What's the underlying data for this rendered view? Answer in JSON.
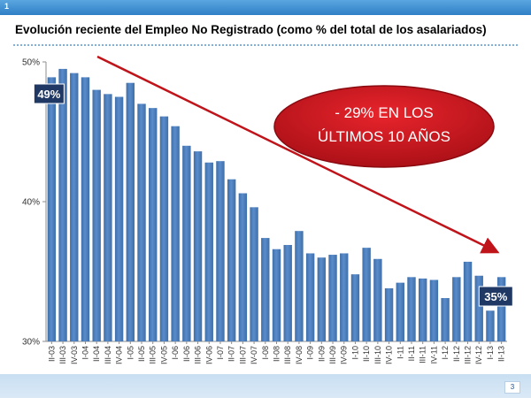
{
  "header": {
    "slide_number": "1"
  },
  "footer": {
    "page_number": "3"
  },
  "chart_data": {
    "type": "bar",
    "title": "Evolución reciente del Empleo No Registrado (como % del total de los asalariados)",
    "categories": [
      "II-03",
      "III-03",
      "IV-03",
      "I-04",
      "II-04",
      "III-04",
      "IV-04",
      "I-05",
      "II-05",
      "III-05",
      "IV-05",
      "I-06",
      "II-06",
      "III-06",
      "IV-06",
      "I-07",
      "II-07",
      "III-07",
      "IV-07",
      "I-08",
      "II-08",
      "III-08",
      "IV-08",
      "I-09",
      "II-09",
      "III-09",
      "IV-09",
      "I-10",
      "II-10",
      "III-10",
      "IV-10",
      "I-11",
      "II-11",
      "III-11",
      "IV-11",
      "I-12",
      "II-12",
      "III-12",
      "IV-12",
      "I-13",
      "II-13"
    ],
    "values": [
      48.9,
      49.5,
      49.2,
      48.9,
      48.0,
      47.7,
      47.5,
      48.5,
      47.0,
      46.7,
      46.1,
      45.4,
      44.0,
      43.6,
      42.8,
      42.9,
      41.6,
      40.6,
      39.6,
      37.4,
      36.6,
      36.9,
      37.9,
      36.3,
      36.0,
      36.2,
      36.3,
      34.8,
      36.7,
      35.9,
      33.8,
      34.2,
      34.6,
      34.5,
      34.4,
      33.1,
      34.6,
      35.7,
      34.7,
      32.2,
      34.6
    ],
    "xlabel": "",
    "ylabel": "",
    "ylim": [
      30,
      50
    ],
    "yticks": [
      30,
      40,
      50
    ],
    "ytick_labels": [
      "30%",
      "40%",
      "50%"
    ],
    "bar_color": "#4f81bd",
    "grid": false,
    "legend": "none",
    "start_label": "49%",
    "end_label": "35%",
    "callout": {
      "line1": "- 29% EN LOS",
      "line2": "ÚLTIMOS 10 AÑOS",
      "color": "#c0141b"
    },
    "trend_arrow_color": "#c0141b"
  }
}
